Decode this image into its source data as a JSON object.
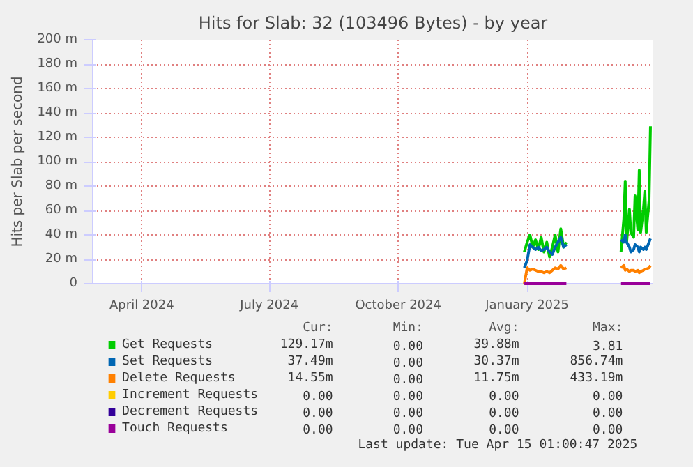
{
  "chart_data": {
    "type": "line",
    "title": "Hits for Slab: 32 (103496 Bytes) - by year",
    "ylabel": "Hits per Slab per second",
    "x": [
      "2025-01-14",
      "2025-01-16",
      "2025-01-18",
      "2025-01-20",
      "2025-01-22",
      "2025-01-24",
      "2025-01-26",
      "2025-01-28",
      "2025-01-30",
      "2025-02-01",
      "2025-02-03",
      "2025-02-05",
      "2025-02-07",
      "2025-02-09",
      "2025-02-11",
      "2025-02-13",
      "2025-03-01",
      "2025-03-24",
      "2025-03-26",
      "2025-03-27",
      "2025-03-28",
      "2025-03-30",
      "2025-03-31",
      "2025-04-02",
      "2025-04-03",
      "2025-04-05",
      "2025-04-06",
      "2025-04-07",
      "2025-04-09",
      "2025-04-10",
      "2025-04-11",
      "2025-04-13",
      "2025-04-14"
    ],
    "series": [
      {
        "name": "Get Requests",
        "color": "#00cc00",
        "values": [
          26,
          34,
          40,
          30,
          36,
          28,
          38,
          26,
          34,
          22,
          30,
          40,
          26,
          45,
          30,
          34,
          null,
          26,
          53,
          84,
          34,
          61,
          42,
          38,
          72,
          44,
          93,
          42,
          61,
          76,
          42,
          68,
          129
        ]
      },
      {
        "name": "Set Requests",
        "color": "#0066b3",
        "values": [
          13,
          19,
          32,
          30,
          28,
          30,
          27,
          28,
          30,
          26,
          24,
          30,
          34,
          38,
          30,
          32,
          null,
          36,
          34,
          40,
          34,
          30,
          26,
          28,
          32,
          30,
          26,
          30,
          28,
          30,
          28,
          34,
          37
        ]
      },
      {
        "name": "Delete Requests",
        "color": "#ff8000",
        "values": [
          0,
          13,
          11,
          12,
          11,
          10,
          10,
          9,
          10,
          9,
          11,
          13,
          12,
          15,
          12,
          13,
          null,
          13,
          15,
          11,
          12,
          10,
          11,
          11,
          10,
          11,
          9,
          10,
          11,
          12,
          12,
          13,
          15
        ]
      },
      {
        "name": "Increment Requests",
        "color": "#ffcc00",
        "values": [
          null,
          null,
          null,
          null,
          null,
          null,
          null,
          null,
          null,
          null,
          null,
          null,
          null,
          null,
          null,
          null,
          null,
          null,
          null,
          null,
          null,
          null,
          null,
          null,
          null,
          null,
          null,
          null,
          null,
          null,
          null,
          null,
          null
        ]
      },
      {
        "name": "Decrement Requests",
        "color": "#330099",
        "values": [
          null,
          null,
          null,
          null,
          null,
          null,
          null,
          null,
          null,
          null,
          null,
          null,
          null,
          null,
          null,
          null,
          null,
          null,
          null,
          null,
          null,
          null,
          null,
          null,
          null,
          null,
          null,
          null,
          null,
          null,
          null,
          null,
          null
        ]
      },
      {
        "name": "Touch Requests",
        "color": "#990099",
        "values": [
          0,
          0,
          0,
          0,
          0,
          0,
          0,
          0,
          0,
          0,
          0,
          0,
          0,
          0,
          0,
          0,
          null,
          0,
          0,
          0,
          0,
          0,
          0,
          0,
          0,
          0,
          0,
          0,
          0,
          0,
          0,
          0,
          0
        ]
      }
    ],
    "xlim": [
      "2024-03-12",
      "2025-04-16"
    ],
    "xticks": [
      {
        "value": "2024-04-16",
        "label": "April 2024"
      },
      {
        "value": "2024-07-16",
        "label": "July 2024"
      },
      {
        "value": "2024-10-16",
        "label": "October 2024"
      },
      {
        "value": "2025-01-16",
        "label": "January 2025"
      }
    ],
    "ylim": [
      0,
      200
    ],
    "yticks": [
      {
        "value": 0,
        "label": "0"
      },
      {
        "value": 20,
        "label": "20 m"
      },
      {
        "value": 40,
        "label": "40 m"
      },
      {
        "value": 60,
        "label": "60 m"
      },
      {
        "value": 80,
        "label": "80 m"
      },
      {
        "value": 100,
        "label": "100 m"
      },
      {
        "value": 120,
        "label": "120 m"
      },
      {
        "value": 140,
        "label": "140 m"
      },
      {
        "value": 160,
        "label": "160 m"
      },
      {
        "value": 180,
        "label": "180 m"
      },
      {
        "value": 200,
        "label": "200 m"
      }
    ],
    "grid": true,
    "legend": "bottom",
    "line_style": "solid",
    "marker": "none",
    "annotations": [
      "Cur:",
      "Min:",
      "Avg:",
      "Max:",
      "129.17m",
      "0.00",
      "39.88m",
      "3.81",
      "37.49m",
      "0.00",
      "30.37m",
      "856.74m",
      "14.55m",
      "0.00",
      "11.75m",
      "433.19m",
      "0.00",
      "0.00",
      "0.00",
      "0.00",
      "0.00",
      "0.00",
      "0.00",
      "0.00",
      "0.00",
      "0.00",
      "0.00",
      "0.00",
      "Last update: Tue Apr 15 01:00:47 2025"
    ]
  }
}
